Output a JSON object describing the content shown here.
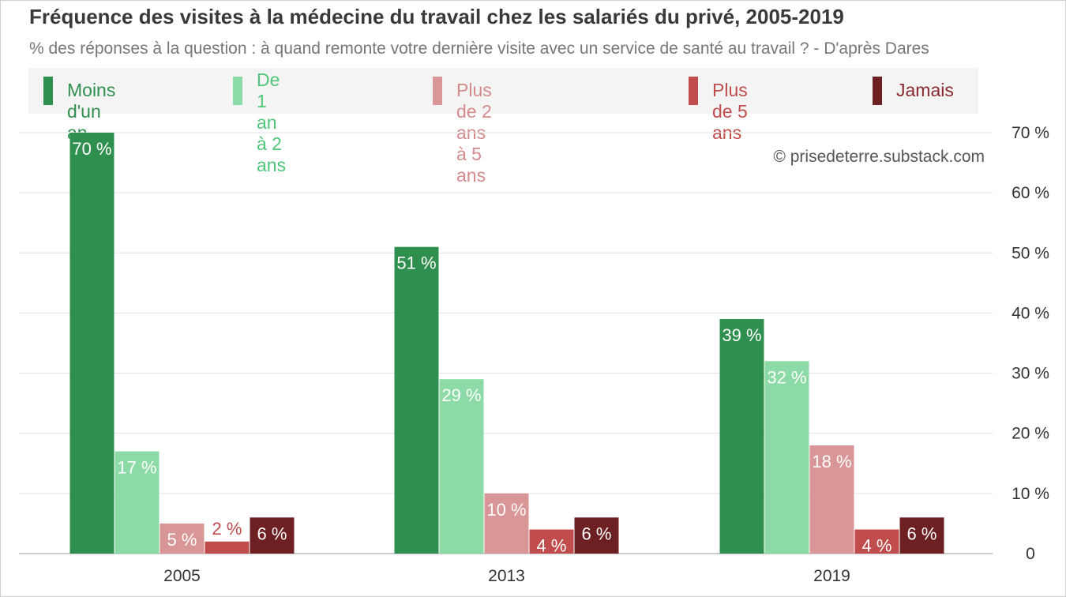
{
  "header": {
    "title": "Fréquence des visites à la médecine du travail chez les salariés du privé, 2005-2019",
    "subtitle": "% des réponses à la question : à quand remonte votre dernière visite avec un service de santé au travail ? - D'après Dares"
  },
  "watermark": "© prisedeterre.substack.com",
  "chart_data": {
    "type": "bar",
    "title": "Fréquence des visites à la médecine du travail chez les salariés du privé, 2005-2019",
    "subtitle": "% des réponses à la question : à quand remonte votre dernière visite avec un service de santé au travail ? - D'après Dares",
    "categories": [
      "2005",
      "2013",
      "2019"
    ],
    "series": [
      {
        "name": "Moins d'un an",
        "color": "#2e8f4e",
        "legend_text_color": "#2e8f4e",
        "label_color": "#ffffff",
        "values": [
          70,
          51,
          39
        ]
      },
      {
        "name": "De 1 an à 2 ans",
        "legend_lines": [
          "De 1 an à 2",
          "ans"
        ],
        "color": "#8cdba6",
        "legend_text_color": "#4fc67a",
        "label_color": "#ffffff",
        "values": [
          17,
          29,
          32
        ]
      },
      {
        "name": "Plus de 2 ans à 5 ans",
        "color": "#d99696",
        "legend_text_color": "#d58b8b",
        "label_color": "#ffffff",
        "values": [
          5,
          10,
          18
        ]
      },
      {
        "name": "Plus de 5 ans",
        "color": "#c14c4c",
        "legend_text_color": "#c14c4c",
        "label_color": "#ffffff",
        "values": [
          2,
          4,
          4
        ]
      },
      {
        "name": "Jamais",
        "color": "#6e1f22",
        "legend_text_color": "#8a2a2e",
        "label_color": "#ffffff",
        "values": [
          6,
          6,
          6
        ]
      }
    ],
    "value_labels": [
      [
        "70 %",
        "17 %",
        "5 %",
        "2 %",
        "6 %"
      ],
      [
        "51 %",
        "29 %",
        "10 %",
        "4 %",
        "6 %"
      ],
      [
        "39 %",
        "32 %",
        "18 %",
        "4 %",
        "6 %"
      ]
    ],
    "outside_label_color": "#c14c4c",
    "y_ticks": [
      0,
      10,
      20,
      30,
      40,
      50,
      60,
      70
    ],
    "y_tick_labels": [
      "0",
      "10 %",
      "20 %",
      "30 %",
      "40 %",
      "50 %",
      "60 %",
      "70 %"
    ],
    "ylim": [
      0,
      70
    ],
    "xlabel": "",
    "ylabel": "",
    "grid": true,
    "y_axis_position": "right",
    "legend_position": "top"
  }
}
